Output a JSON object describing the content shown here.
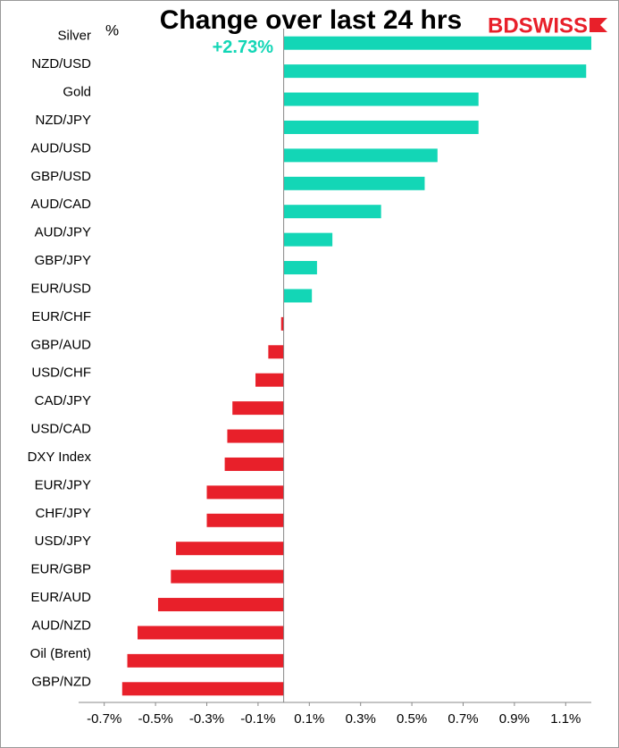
{
  "chart_data": {
    "type": "hbar",
    "title": "Change over last 24 hrs",
    "ylabel": "%",
    "logo": "BDSWISS",
    "categories": [
      "Silver",
      "NZD/USD",
      "Gold",
      "NZD/JPY",
      "AUD/USD",
      "GBP/USD",
      "AUD/CAD",
      "AUD/JPY",
      "GBP/JPY",
      "EUR/USD",
      "EUR/CHF",
      "GBP/AUD",
      "USD/CHF",
      "CAD/JPY",
      "USD/CAD",
      "DXY Index",
      "EUR/JPY",
      "CHF/JPY",
      "USD/JPY",
      "EUR/GBP",
      "EUR/AUD",
      "AUD/NZD",
      "Oil (Brent)",
      "GBP/NZD"
    ],
    "values": [
      2.73,
      1.18,
      0.76,
      0.76,
      0.6,
      0.55,
      0.38,
      0.19,
      0.13,
      0.11,
      -0.01,
      -0.06,
      -0.11,
      -0.2,
      -0.22,
      -0.23,
      -0.3,
      -0.3,
      -0.42,
      -0.44,
      -0.49,
      -0.57,
      -0.61,
      -0.63
    ],
    "value_labels": [
      "+2.73%",
      null,
      null,
      null,
      null,
      null,
      null,
      null,
      null,
      null,
      null,
      null,
      null,
      null,
      null,
      null,
      null,
      null,
      null,
      null,
      null,
      null,
      null,
      null
    ],
    "positive_color": "#13d6b6",
    "negative_color": "#e8202a",
    "xlim": [
      -0.8,
      1.2
    ],
    "xticks": [
      {
        "value": -0.7,
        "label": "-0.7%"
      },
      {
        "value": -0.5,
        "label": "-0.5%"
      },
      {
        "value": -0.3,
        "label": "-0.3%"
      },
      {
        "value": -0.1,
        "label": "-0.1%"
      },
      {
        "value": 0.1,
        "label": "0.1%"
      },
      {
        "value": 0.3,
        "label": "0.3%"
      },
      {
        "value": 0.5,
        "label": "0.5%"
      },
      {
        "value": 0.7,
        "label": "0.7%"
      },
      {
        "value": 0.9,
        "label": "0.9%"
      },
      {
        "value": 1.1,
        "label": "1.1%"
      }
    ]
  }
}
